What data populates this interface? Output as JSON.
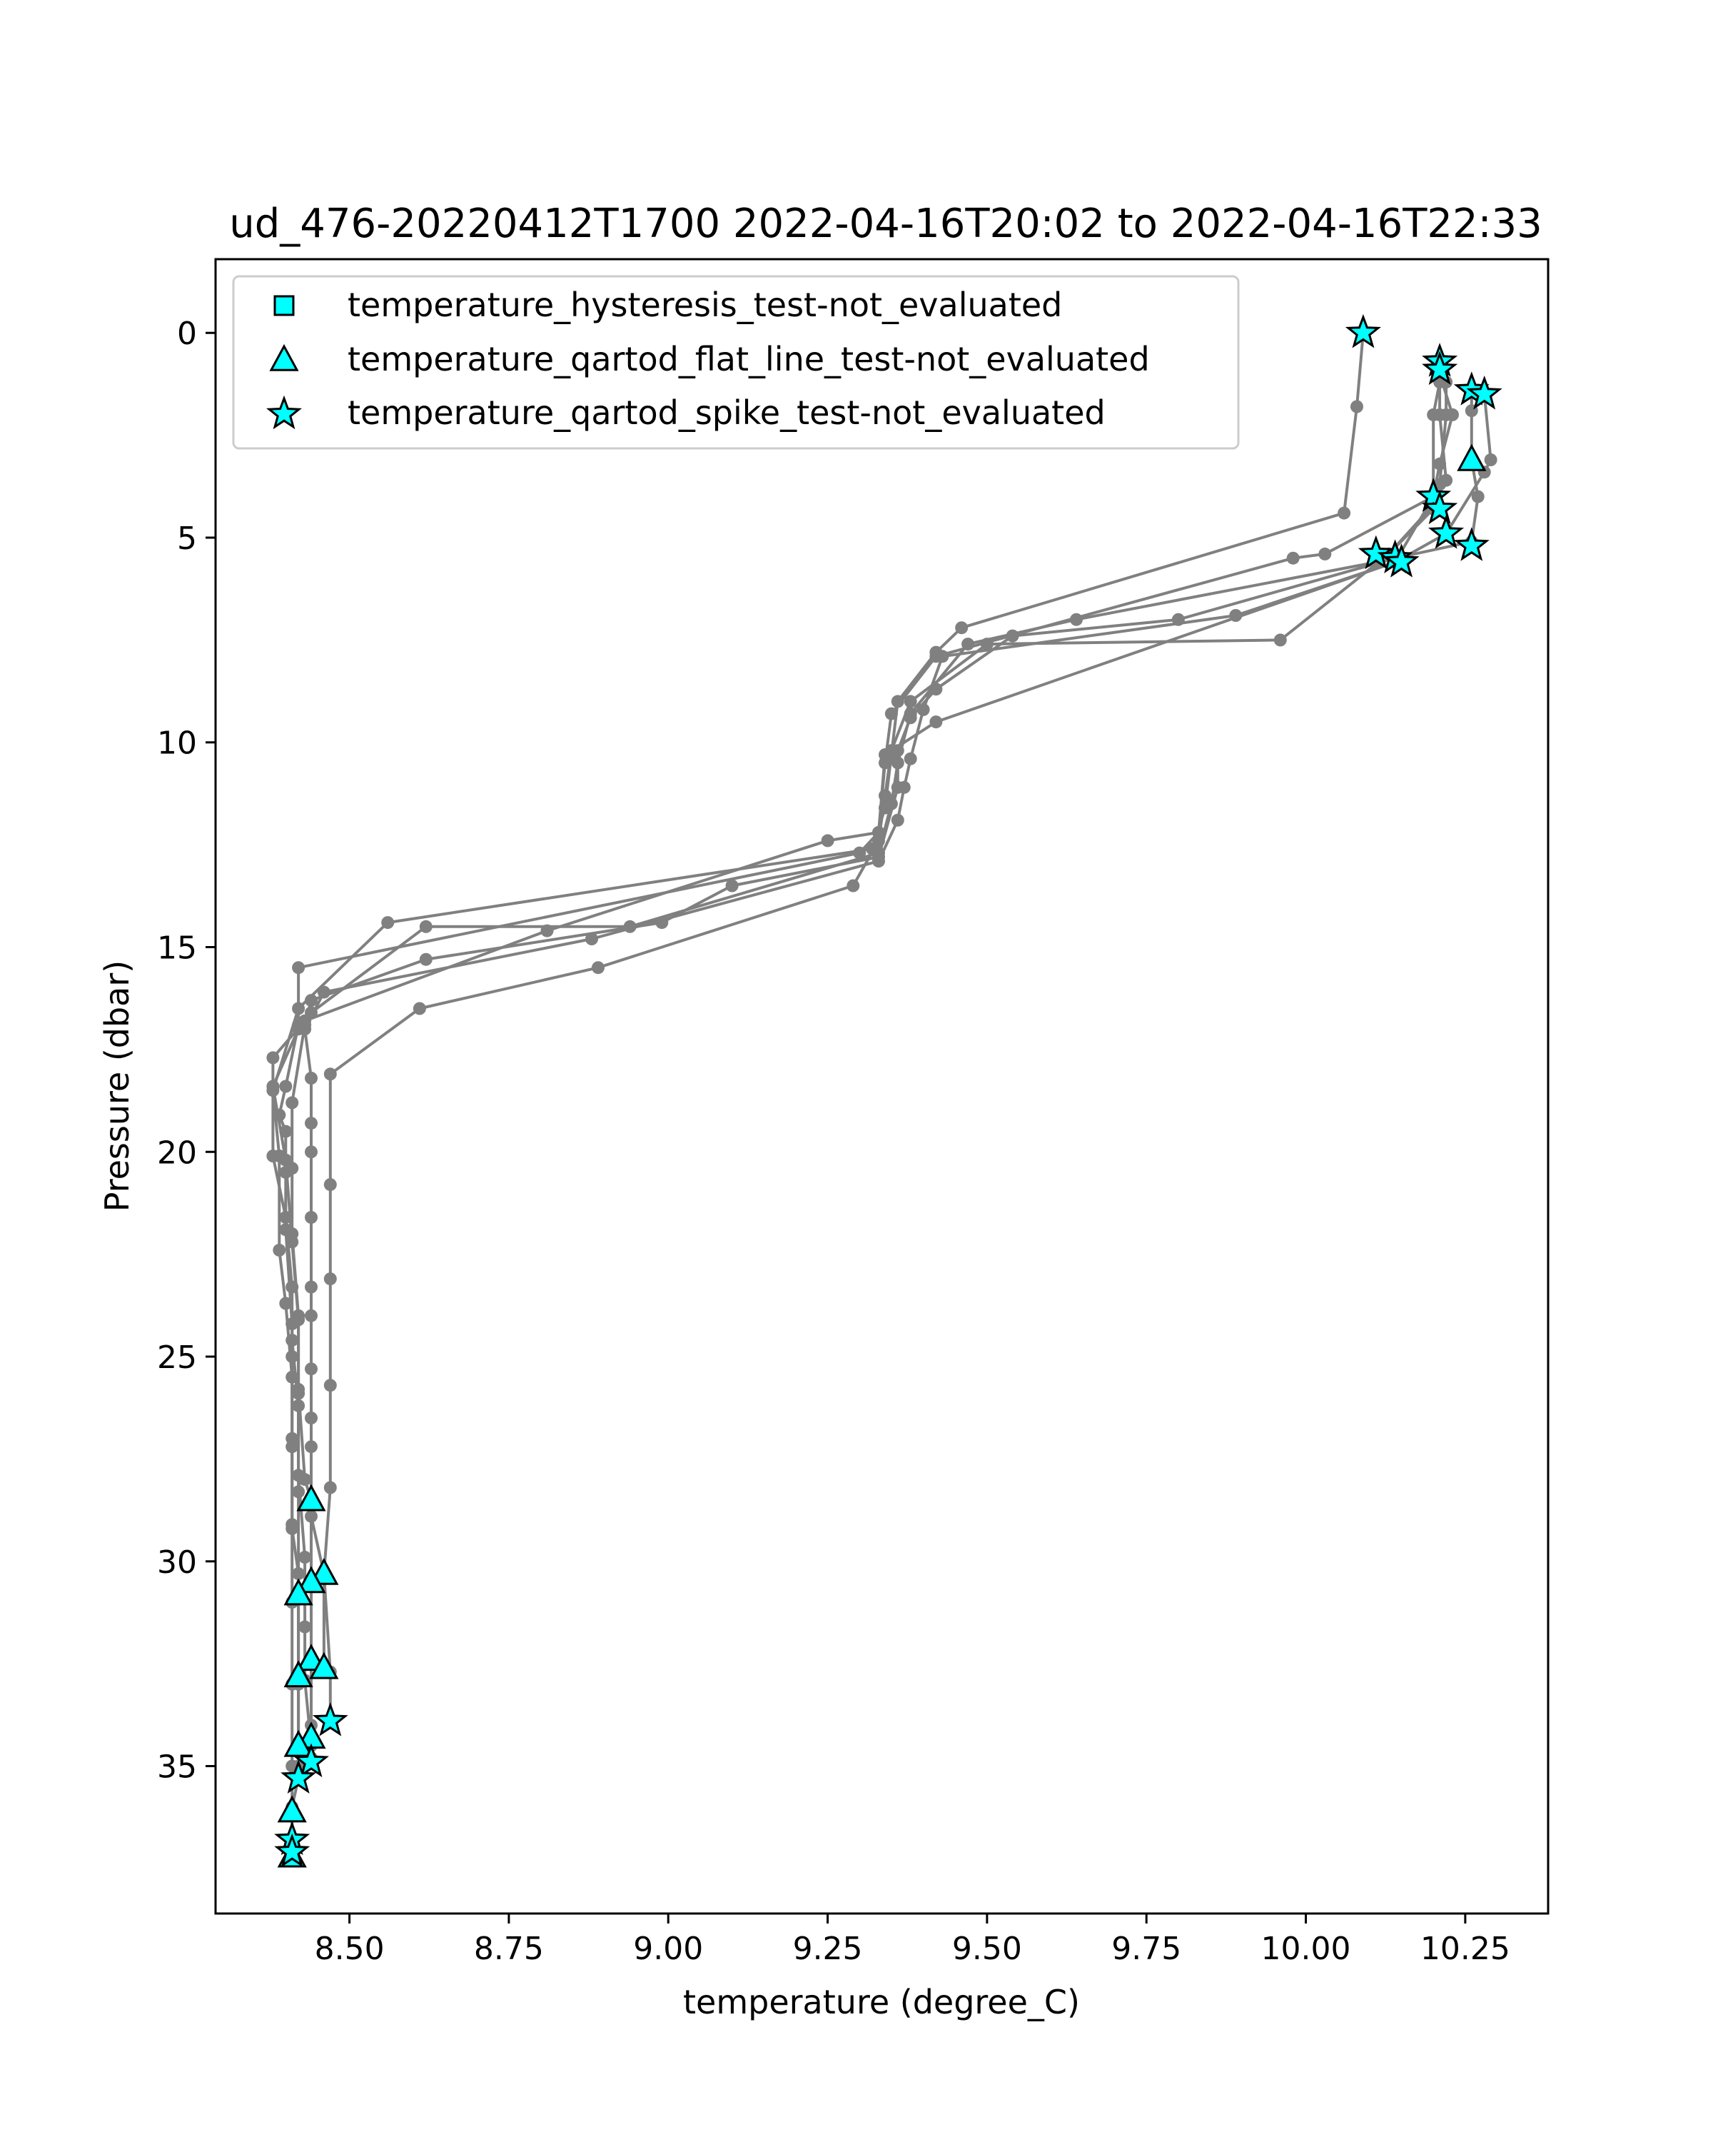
{
  "chart_data": {
    "type": "line",
    "title": "ud_476-20220412T1700 2022-04-16T20:02 to 2022-04-16T22:33",
    "xlabel": "temperature (degree_C)",
    "ylabel": "Pressure (dbar)",
    "xlim": [
      8.29,
      10.38
    ],
    "ylim": [
      38.6,
      -1.8
    ],
    "y_inverted": true,
    "xticks": [
      8.5,
      8.75,
      9.0,
      9.25,
      9.5,
      9.75,
      10.0,
      10.25
    ],
    "xtick_labels": [
      "8.50",
      "8.75",
      "9.00",
      "9.25",
      "9.50",
      "9.75",
      "10.00",
      "10.25"
    ],
    "yticks": [
      0,
      5,
      10,
      15,
      20,
      25,
      30,
      35
    ],
    "ytick_labels": [
      "0",
      "5",
      "10",
      "15",
      "20",
      "25",
      "30",
      "35"
    ],
    "grid": false,
    "legend_position": "top-left",
    "line_color": "#808080",
    "marker_color": "#00ffff",
    "legend": [
      {
        "label": "temperature_hysteresis_test-not_evaluated",
        "marker": "square"
      },
      {
        "label": "temperature_qartod_flat_line_test-not_evaluated",
        "marker": "triangle"
      },
      {
        "label": "temperature_qartod_spike_test-not_evaluated",
        "marker": "star"
      }
    ],
    "profiles": [
      [
        [
          10.09,
          0.0
        ],
        [
          10.08,
          1.8
        ],
        [
          10.06,
          4.4
        ],
        [
          9.46,
          7.2
        ],
        [
          9.42,
          7.8
        ],
        [
          9.36,
          9.0
        ],
        [
          9.35,
          10.3
        ],
        [
          9.34,
          11.6
        ],
        [
          9.32,
          12.6
        ],
        [
          8.56,
          14.4
        ],
        [
          8.42,
          16.5
        ],
        [
          8.38,
          18.5
        ],
        [
          8.39,
          20.1
        ],
        [
          8.39,
          22.4
        ],
        [
          8.4,
          23.7
        ],
        [
          8.41,
          25.5
        ],
        [
          8.41,
          27.2
        ],
        [
          8.41,
          29.1
        ],
        [
          8.41,
          31.0
        ],
        [
          8.41,
          33.0
        ],
        [
          8.41,
          35.0
        ],
        [
          8.41,
          36.8
        ],
        [
          8.41,
          37.0
        ]
      ],
      [
        [
          10.21,
          0.7
        ],
        [
          10.21,
          1.2
        ],
        [
          10.2,
          2.0
        ],
        [
          10.2,
          4.0
        ],
        [
          10.03,
          5.4
        ],
        [
          9.98,
          5.5
        ],
        [
          9.42,
          7.9
        ],
        [
          9.35,
          9.3
        ],
        [
          9.34,
          10.5
        ],
        [
          9.33,
          12.2
        ],
        [
          9.25,
          12.4
        ],
        [
          8.81,
          14.6
        ],
        [
          8.43,
          16.8
        ],
        [
          8.38,
          17.7
        ],
        [
          8.38,
          20.1
        ],
        [
          8.4,
          21.6
        ],
        [
          8.41,
          23.3
        ],
        [
          8.41,
          24.6
        ],
        [
          8.42,
          26.2
        ],
        [
          8.42,
          28.3
        ],
        [
          8.42,
          30.8
        ],
        [
          8.42,
          32.8
        ],
        [
          8.42,
          34.5
        ],
        [
          8.42,
          35.3
        ],
        [
          8.41,
          36.0
        ],
        [
          8.41,
          37.2
        ]
      ],
      [
        [
          10.21,
          0.8
        ],
        [
          10.21,
          2.0
        ],
        [
          10.22,
          3.6
        ],
        [
          10.2,
          4.2
        ],
        [
          10.13,
          5.4
        ],
        [
          10.11,
          5.6
        ],
        [
          9.64,
          7.0
        ],
        [
          9.47,
          7.6
        ],
        [
          9.38,
          9.3
        ],
        [
          9.36,
          10.5
        ],
        [
          9.35,
          11.5
        ],
        [
          9.33,
          12.7
        ],
        [
          8.94,
          14.5
        ],
        [
          8.62,
          14.5
        ],
        [
          8.44,
          16.6
        ],
        [
          8.42,
          17.0
        ],
        [
          8.38,
          18.4
        ],
        [
          8.4,
          20.2
        ],
        [
          8.41,
          22.2
        ],
        [
          8.42,
          24.1
        ],
        [
          8.42,
          25.9
        ],
        [
          8.42,
          27.9
        ],
        [
          8.43,
          29.9
        ],
        [
          8.43,
          31.6
        ],
        [
          8.43,
          32.9
        ],
        [
          8.44,
          34.5
        ],
        [
          8.44,
          34.9
        ],
        [
          8.42,
          35.3
        ]
      ],
      [
        [
          10.26,
          1.4
        ],
        [
          10.26,
          1.9
        ],
        [
          10.26,
          3.1
        ],
        [
          10.27,
          4.0
        ],
        [
          10.26,
          5.1
        ],
        [
          10.14,
          5.5
        ],
        [
          9.8,
          7.0
        ],
        [
          9.54,
          7.4
        ],
        [
          9.42,
          8.7
        ],
        [
          9.38,
          9.4
        ],
        [
          9.36,
          10.2
        ],
        [
          9.36,
          11.1
        ],
        [
          9.33,
          12.8
        ],
        [
          9.1,
          13.5
        ],
        [
          8.99,
          14.4
        ],
        [
          8.62,
          15.3
        ],
        [
          8.44,
          16.3
        ],
        [
          8.43,
          16.9
        ],
        [
          8.41,
          18.8
        ],
        [
          8.41,
          20.4
        ],
        [
          8.41,
          22.0
        ],
        [
          8.42,
          24.0
        ],
        [
          8.42,
          25.8
        ],
        [
          8.43,
          28.0
        ],
        [
          8.44,
          28.5
        ],
        [
          8.44,
          30.5
        ],
        [
          8.44,
          32.4
        ],
        [
          8.44,
          34.0
        ],
        [
          8.44,
          34.8
        ]
      ],
      [
        [
          10.28,
          1.5
        ],
        [
          10.29,
          3.1
        ],
        [
          10.28,
          3.4
        ],
        [
          10.22,
          4.9
        ],
        [
          10.14,
          5.6
        ],
        [
          9.89,
          6.9
        ],
        [
          9.43,
          7.9
        ],
        [
          9.4,
          9.2
        ],
        [
          9.38,
          10.4
        ],
        [
          9.37,
          11.1
        ],
        [
          9.36,
          11.9
        ],
        [
          9.33,
          12.9
        ],
        [
          8.88,
          14.8
        ],
        [
          8.46,
          16.1
        ],
        [
          8.43,
          17.0
        ],
        [
          8.44,
          18.2
        ],
        [
          8.44,
          19.3
        ],
        [
          8.44,
          20.0
        ],
        [
          8.44,
          21.6
        ],
        [
          8.44,
          23.3
        ],
        [
          8.44,
          24.0
        ],
        [
          8.44,
          25.3
        ],
        [
          8.44,
          26.5
        ],
        [
          8.44,
          27.2
        ],
        [
          8.44,
          28.9
        ],
        [
          8.46,
          30.3
        ],
        [
          8.46,
          32.6
        ]
      ],
      [
        [
          10.22,
          1.2
        ],
        [
          10.22,
          2.0
        ],
        [
          10.21,
          3.7
        ],
        [
          10.2,
          4.3
        ],
        [
          10.13,
          5.4
        ],
        [
          9.96,
          7.5
        ],
        [
          9.5,
          7.6
        ],
        [
          9.38,
          9.0
        ],
        [
          9.35,
          10.2
        ],
        [
          9.34,
          11.3
        ],
        [
          9.33,
          12.4
        ],
        [
          9.29,
          13.5
        ],
        [
          8.89,
          15.5
        ],
        [
          8.61,
          16.5
        ],
        [
          8.47,
          18.1
        ],
        [
          8.47,
          20.8
        ],
        [
          8.47,
          23.1
        ],
        [
          8.47,
          25.7
        ],
        [
          8.47,
          28.2
        ],
        [
          8.46,
          30.3
        ],
        [
          8.47,
          32.7
        ],
        [
          8.47,
          33.9
        ]
      ],
      [
        [
          10.21,
          1.0
        ],
        [
          10.23,
          2.0
        ],
        [
          10.21,
          3.2
        ],
        [
          10.2,
          4.0
        ],
        [
          10.14,
          5.6
        ],
        [
          9.42,
          9.5
        ],
        [
          9.34,
          10.3
        ],
        [
          9.33,
          12.2
        ],
        [
          9.3,
          12.7
        ],
        [
          8.42,
          15.5
        ],
        [
          8.42,
          16.9
        ],
        [
          8.4,
          18.4
        ],
        [
          8.39,
          19.1
        ],
        [
          8.4,
          19.5
        ],
        [
          8.4,
          20.5
        ],
        [
          8.4,
          21.9
        ],
        [
          8.41,
          24.2
        ],
        [
          8.41,
          25.0
        ],
        [
          8.41,
          27.0
        ],
        [
          8.41,
          29.2
        ],
        [
          8.42,
          30.3
        ],
        [
          8.42,
          30.9
        ],
        [
          8.42,
          33.0
        ],
        [
          8.42,
          35.0
        ]
      ]
    ],
    "series": [
      {
        "name": "temperature_hysteresis_test-not_evaluated",
        "marker": "square",
        "points": []
      },
      {
        "name": "temperature_qartod_flat_line_test-not_evaluated",
        "marker": "triangle",
        "points": [
          [
            10.26,
            3.1
          ],
          [
            8.44,
            28.5
          ],
          [
            8.46,
            30.3
          ],
          [
            8.44,
            30.5
          ],
          [
            8.42,
            30.8
          ],
          [
            8.44,
            32.4
          ],
          [
            8.46,
            32.6
          ],
          [
            8.42,
            32.8
          ],
          [
            8.44,
            34.3
          ],
          [
            8.42,
            34.5
          ],
          [
            8.41,
            36.1
          ],
          [
            8.41,
            37.2
          ]
        ]
      },
      {
        "name": "temperature_qartod_spike_test-not_evaluated",
        "marker": "star",
        "points": [
          [
            10.09,
            0.0
          ],
          [
            10.21,
            0.7
          ],
          [
            10.21,
            0.9
          ],
          [
            10.26,
            1.4
          ],
          [
            10.28,
            1.5
          ],
          [
            10.2,
            4.0
          ],
          [
            10.21,
            4.3
          ],
          [
            10.22,
            4.9
          ],
          [
            10.26,
            5.2
          ],
          [
            10.11,
            5.4
          ],
          [
            10.14,
            5.5
          ],
          [
            10.15,
            5.6
          ],
          [
            8.47,
            33.9
          ],
          [
            8.44,
            34.9
          ],
          [
            8.42,
            35.3
          ],
          [
            8.41,
            36.8
          ],
          [
            8.41,
            37.1
          ]
        ]
      }
    ]
  }
}
